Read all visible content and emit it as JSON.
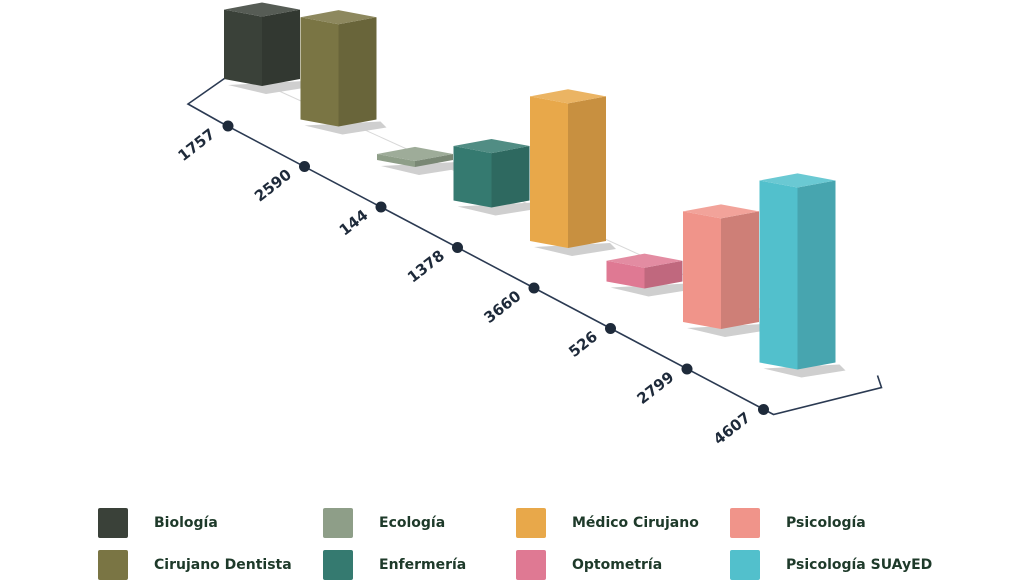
{
  "chart_data": {
    "type": "bar",
    "categories": [
      "Biología",
      "Cirujano Dentista",
      "Ecología",
      "Enfermería",
      "Médico Cirujano",
      "Optometría",
      "Psicología",
      "Psicología SUAyED"
    ],
    "values": [
      1757,
      2590,
      144,
      1378,
      3660,
      526,
      2799,
      4607
    ],
    "value_labels": [
      "1757",
      "2590",
      "144",
      "1378",
      "3660",
      "526",
      "2799",
      "4607"
    ],
    "colors": [
      "#3a4139",
      "#7a7544",
      "#8e9e88",
      "#357a70",
      "#e8a84a",
      "#df7993",
      "#f0948a",
      "#52c0cc"
    ],
    "legend": {
      "placement": "bottom",
      "items": [
        {
          "label": "Biología",
          "color": "#3a4139"
        },
        {
          "label": "Cirujano Dentista",
          "color": "#7a7544"
        },
        {
          "label": "Ecología",
          "color": "#8e9e88"
        },
        {
          "label": "Enfermería",
          "color": "#357a70"
        },
        {
          "label": "Médico Cirujano",
          "color": "#e8a84a"
        },
        {
          "label": "Optometría",
          "color": "#df7993"
        },
        {
          "label": "Psicología",
          "color": "#f0948a"
        },
        {
          "label": "Psicología SUAyED",
          "color": "#52c0cc"
        }
      ]
    },
    "title": "",
    "xlabel": "",
    "ylabel": "",
    "grid": false
  }
}
